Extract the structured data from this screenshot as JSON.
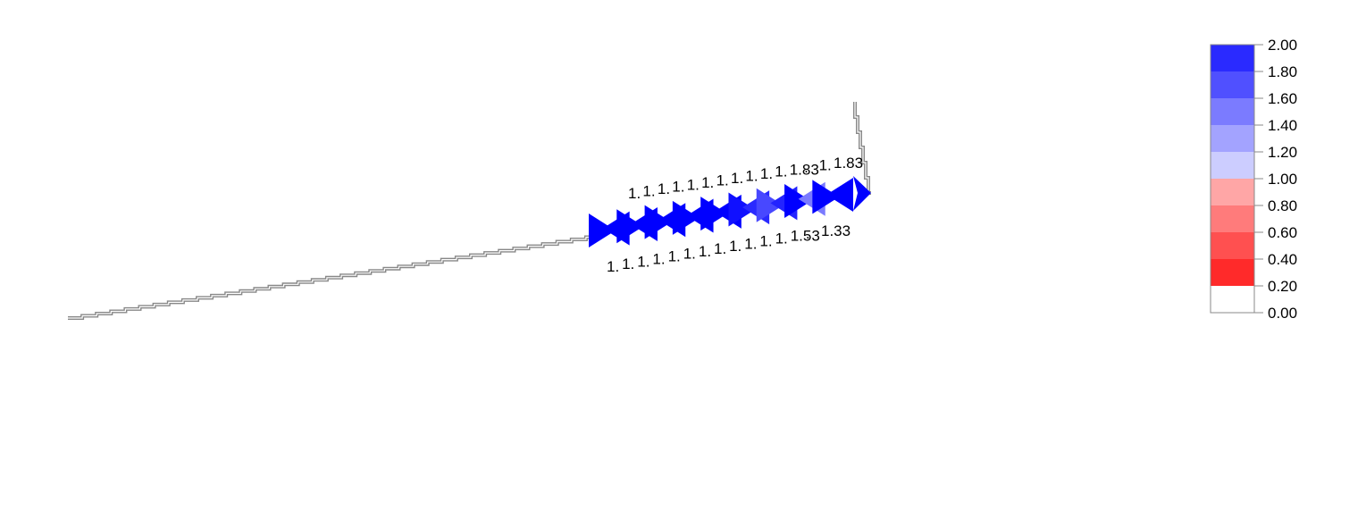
{
  "colors": {
    "track": "#888888",
    "arrow_default": "#0000ff"
  },
  "labels_top": [
    "1.",
    "1.",
    "1.",
    "1.",
    "1.",
    "1.",
    "1.",
    "1.",
    "1.",
    "1.",
    "1.",
    "1.83",
    ".",
    "1.",
    "1.83"
  ],
  "labels_bottom": [
    "1.",
    "1.",
    "1.",
    "1.",
    "1.",
    "1.",
    "1.",
    "1.",
    "1.",
    "1.",
    "1.",
    "1.",
    "1.53",
    ".",
    "1.33"
  ],
  "arrows": [
    {
      "color": "#0000ff"
    },
    {
      "color": "#0000ff"
    },
    {
      "color": "#0000ff"
    },
    {
      "color": "#0000ff"
    },
    {
      "color": "#0000ff"
    },
    {
      "color": "#0000ff"
    },
    {
      "color": "#0000ff"
    },
    {
      "color": "#0000ff"
    },
    {
      "color": "#0000ff"
    },
    {
      "color": "#0000ff"
    },
    {
      "color": "#1010ff"
    },
    {
      "color": "#2a2aff"
    },
    {
      "color": "#4848ff"
    },
    {
      "color": "#2323ff"
    },
    {
      "color": "#0000ff"
    },
    {
      "color": "#7a7aff"
    },
    {
      "color": "#0000ff"
    },
    {
      "color": "#0000ff"
    }
  ],
  "legend": {
    "bins": [
      {
        "color": "#2a2aff"
      },
      {
        "color": "#5050ff"
      },
      {
        "color": "#7b7bff"
      },
      {
        "color": "#a3a3ff"
      },
      {
        "color": "#cccdff"
      },
      {
        "color": "#ffa6a6"
      },
      {
        "color": "#ff7b7b"
      },
      {
        "color": "#ff5050"
      },
      {
        "color": "#ff2a2a"
      },
      {
        "color": "#ffffff"
      }
    ],
    "ticks": [
      "2.00",
      "1.80",
      "1.60",
      "1.40",
      "1.20",
      "1.00",
      "0.80",
      "0.60",
      "0.40",
      "0.20",
      "0.00"
    ]
  }
}
